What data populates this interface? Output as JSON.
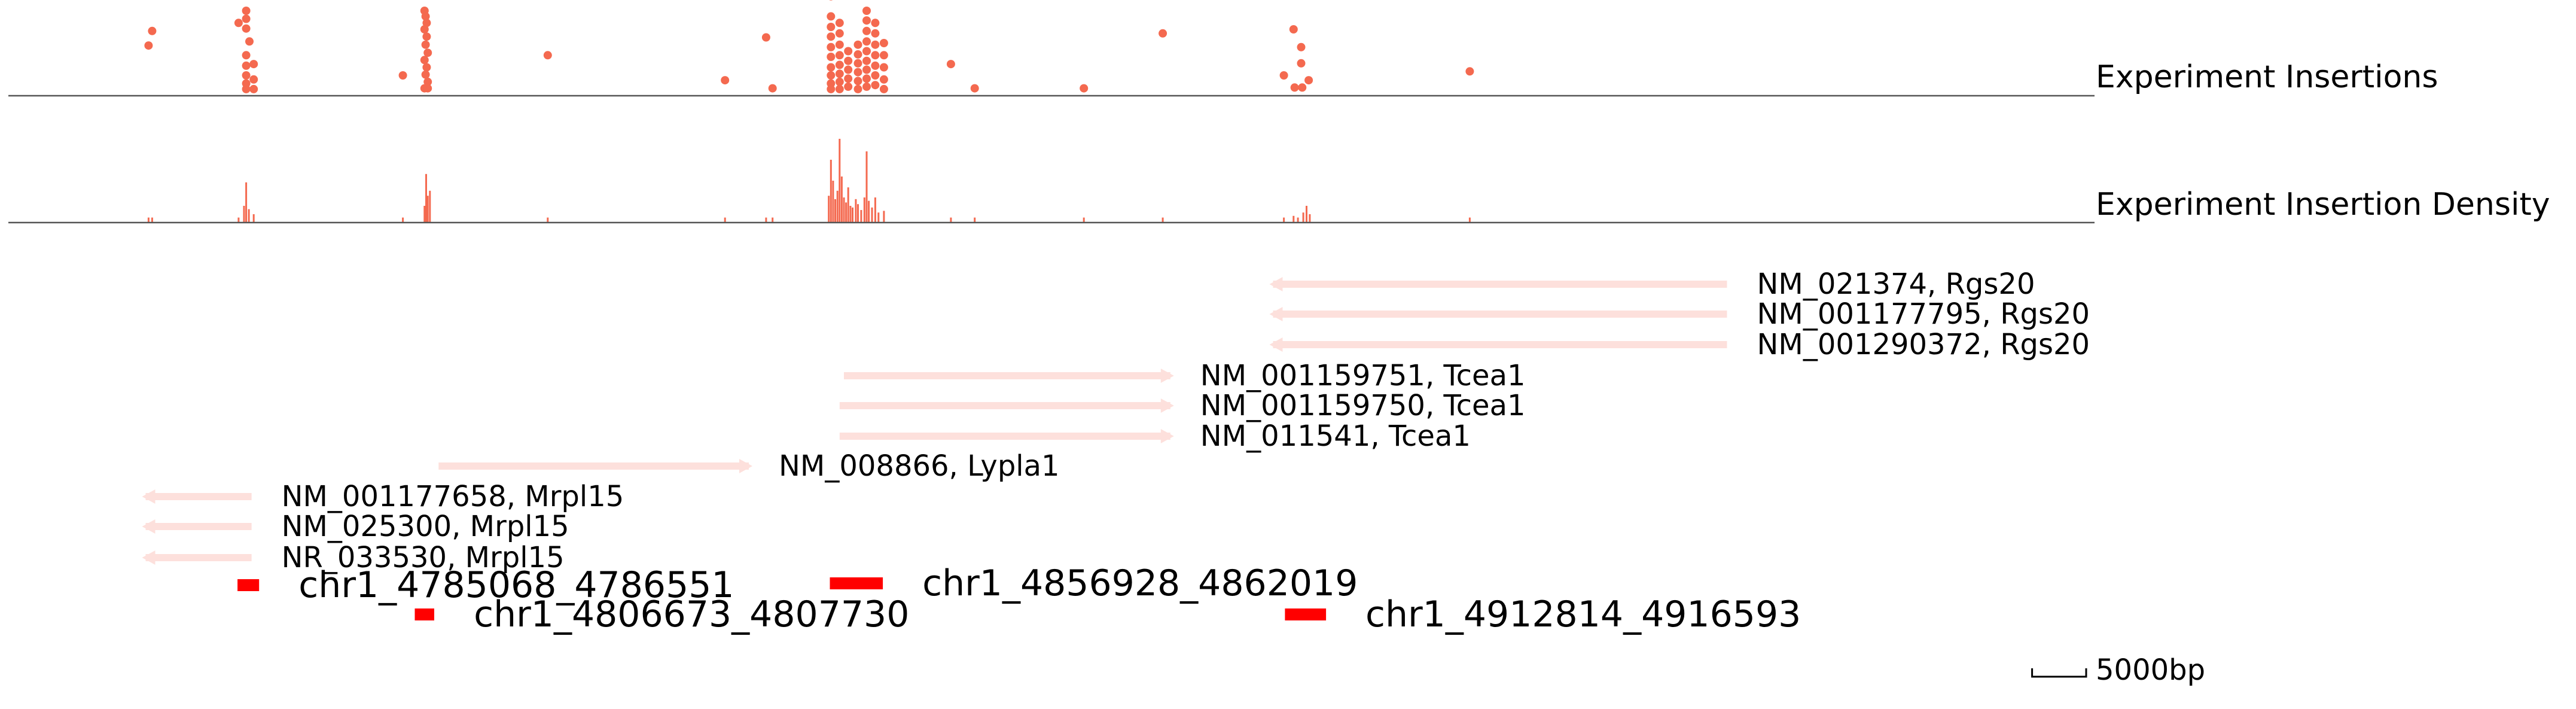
{
  "chart_data": {
    "type": "genome_browser",
    "genomic_range": [
      4752000,
      4945000
    ],
    "colors": {
      "insertion": "#f4694f",
      "density": "#f4694f",
      "gene": "#fde0dc",
      "peak": "#ff0000",
      "axis": "#555555"
    },
    "tracks": {
      "insertions_label": "Experiment Insertions",
      "density_label": "Experiment Insertion Density"
    },
    "insertions": [
      {
        "pos": 4764970,
        "level": 0.57
      },
      {
        "pos": 4765300,
        "level": 0.75
      },
      {
        "pos": 4773300,
        "level": 0.85
      },
      {
        "pos": 4774000,
        "level": 1.0
      },
      {
        "pos": 4774000,
        "level": 0.9
      },
      {
        "pos": 4774000,
        "level": 0.78
      },
      {
        "pos": 4774000,
        "level": 0.45
      },
      {
        "pos": 4774000,
        "level": 0.32
      },
      {
        "pos": 4774000,
        "level": 0.2
      },
      {
        "pos": 4774000,
        "level": 0.1
      },
      {
        "pos": 4774000,
        "level": 0.03
      },
      {
        "pos": 4774300,
        "level": 0.62
      },
      {
        "pos": 4774700,
        "level": 0.34
      },
      {
        "pos": 4774700,
        "level": 0.15
      },
      {
        "pos": 4774700,
        "level": 0.03
      },
      {
        "pos": 4788500,
        "level": 0.2
      },
      {
        "pos": 4790500,
        "level": 1.0
      },
      {
        "pos": 4790600,
        "level": 0.93
      },
      {
        "pos": 4790700,
        "level": 0.85
      },
      {
        "pos": 4790500,
        "level": 0.77
      },
      {
        "pos": 4790700,
        "level": 0.68
      },
      {
        "pos": 4790600,
        "level": 0.58
      },
      {
        "pos": 4790800,
        "level": 0.48
      },
      {
        "pos": 4790500,
        "level": 0.39
      },
      {
        "pos": 4790700,
        "level": 0.3
      },
      {
        "pos": 4790600,
        "level": 0.21
      },
      {
        "pos": 4790800,
        "level": 0.12
      },
      {
        "pos": 4790500,
        "level": 0.04
      },
      {
        "pos": 4790800,
        "level": 0.04
      },
      {
        "pos": 4801900,
        "level": 0.45
      },
      {
        "pos": 4818300,
        "level": 0.14
      },
      {
        "pos": 4822100,
        "level": 0.67
      },
      {
        "pos": 4822700,
        "level": 0.04
      },
      {
        "pos": 4828100,
        "level": 1.18
      },
      {
        "pos": 4828100,
        "level": 0.93
      },
      {
        "pos": 4828100,
        "level": 0.8
      },
      {
        "pos": 4828100,
        "level": 0.68
      },
      {
        "pos": 4828100,
        "level": 0.55
      },
      {
        "pos": 4828100,
        "level": 0.43
      },
      {
        "pos": 4828100,
        "level": 0.3
      },
      {
        "pos": 4828100,
        "level": 0.2
      },
      {
        "pos": 4828100,
        "level": 0.1
      },
      {
        "pos": 4828100,
        "level": 0.03
      },
      {
        "pos": 4828900,
        "level": 0.85
      },
      {
        "pos": 4828900,
        "level": 0.72
      },
      {
        "pos": 4828900,
        "level": 0.58
      },
      {
        "pos": 4828900,
        "level": 0.45
      },
      {
        "pos": 4828900,
        "level": 0.33
      },
      {
        "pos": 4828900,
        "level": 0.22
      },
      {
        "pos": 4828900,
        "level": 0.12
      },
      {
        "pos": 4828900,
        "level": 0.03
      },
      {
        "pos": 4829700,
        "level": 0.5
      },
      {
        "pos": 4829700,
        "level": 0.38
      },
      {
        "pos": 4829700,
        "level": 0.27
      },
      {
        "pos": 4829700,
        "level": 0.16
      },
      {
        "pos": 4829700,
        "level": 0.06
      },
      {
        "pos": 4830600,
        "level": 0.58
      },
      {
        "pos": 4830600,
        "level": 0.46
      },
      {
        "pos": 4830600,
        "level": 0.35
      },
      {
        "pos": 4830600,
        "level": 0.24
      },
      {
        "pos": 4830600,
        "level": 0.13
      },
      {
        "pos": 4830600,
        "level": 0.03
      },
      {
        "pos": 4831400,
        "level": 1.0
      },
      {
        "pos": 4831400,
        "level": 0.88
      },
      {
        "pos": 4831400,
        "level": 0.75
      },
      {
        "pos": 4831400,
        "level": 0.62
      },
      {
        "pos": 4831400,
        "level": 0.5
      },
      {
        "pos": 4831400,
        "level": 0.38
      },
      {
        "pos": 4831400,
        "level": 0.27
      },
      {
        "pos": 4831400,
        "level": 0.16
      },
      {
        "pos": 4831400,
        "level": 0.06
      },
      {
        "pos": 4832200,
        "level": 0.85
      },
      {
        "pos": 4832200,
        "level": 0.72
      },
      {
        "pos": 4832200,
        "level": 0.58
      },
      {
        "pos": 4832200,
        "level": 0.45
      },
      {
        "pos": 4832200,
        "level": 0.32
      },
      {
        "pos": 4832200,
        "level": 0.2
      },
      {
        "pos": 4832200,
        "level": 0.08
      },
      {
        "pos": 4833000,
        "level": 0.6
      },
      {
        "pos": 4833000,
        "level": 0.45
      },
      {
        "pos": 4833000,
        "level": 0.3
      },
      {
        "pos": 4833000,
        "level": 0.15
      },
      {
        "pos": 4833000,
        "level": 0.03
      },
      {
        "pos": 4839200,
        "level": 0.34
      },
      {
        "pos": 4841400,
        "level": 0.04
      },
      {
        "pos": 4851500,
        "level": 0.04
      },
      {
        "pos": 4858800,
        "level": 0.72
      },
      {
        "pos": 4870000,
        "level": 0.2
      },
      {
        "pos": 4870900,
        "level": 0.77
      },
      {
        "pos": 4871600,
        "level": 0.55
      },
      {
        "pos": 4871600,
        "level": 0.35
      },
      {
        "pos": 4871000,
        "level": 0.05
      },
      {
        "pos": 4871700,
        "level": 0.05
      },
      {
        "pos": 4872300,
        "level": 0.14
      },
      {
        "pos": 4887200,
        "level": 0.25
      }
    ],
    "density": [
      {
        "pos": 4764970,
        "value": 0.06
      },
      {
        "pos": 4765300,
        "value": 0.06
      },
      {
        "pos": 4773300,
        "value": 0.06
      },
      {
        "pos": 4773800,
        "value": 0.2
      },
      {
        "pos": 4774000,
        "value": 0.48
      },
      {
        "pos": 4774250,
        "value": 0.16
      },
      {
        "pos": 4774700,
        "value": 0.1
      },
      {
        "pos": 4788500,
        "value": 0.06
      },
      {
        "pos": 4790500,
        "value": 0.2
      },
      {
        "pos": 4790650,
        "value": 0.58
      },
      {
        "pos": 4790800,
        "value": 0.32
      },
      {
        "pos": 4791000,
        "value": 0.38
      },
      {
        "pos": 4801900,
        "value": 0.06
      },
      {
        "pos": 4818300,
        "value": 0.06
      },
      {
        "pos": 4822100,
        "value": 0.06
      },
      {
        "pos": 4822700,
        "value": 0.06
      },
      {
        "pos": 4827900,
        "value": 0.32
      },
      {
        "pos": 4828100,
        "value": 0.75
      },
      {
        "pos": 4828300,
        "value": 0.5
      },
      {
        "pos": 4828500,
        "value": 0.28
      },
      {
        "pos": 4828700,
        "value": 0.38
      },
      {
        "pos": 4828900,
        "value": 1.0
      },
      {
        "pos": 4829100,
        "value": 0.55
      },
      {
        "pos": 4829300,
        "value": 0.3
      },
      {
        "pos": 4829500,
        "value": 0.24
      },
      {
        "pos": 4829700,
        "value": 0.42
      },
      {
        "pos": 4829900,
        "value": 0.2
      },
      {
        "pos": 4830100,
        "value": 0.18
      },
      {
        "pos": 4830400,
        "value": 0.28
      },
      {
        "pos": 4830600,
        "value": 0.22
      },
      {
        "pos": 4830900,
        "value": 0.15
      },
      {
        "pos": 4831200,
        "value": 0.3
      },
      {
        "pos": 4831400,
        "value": 0.85
      },
      {
        "pos": 4831600,
        "value": 0.26
      },
      {
        "pos": 4831900,
        "value": 0.18
      },
      {
        "pos": 4832200,
        "value": 0.3
      },
      {
        "pos": 4832500,
        "value": 0.12
      },
      {
        "pos": 4833000,
        "value": 0.14
      },
      {
        "pos": 4839200,
        "value": 0.06
      },
      {
        "pos": 4841400,
        "value": 0.06
      },
      {
        "pos": 4851500,
        "value": 0.06
      },
      {
        "pos": 4858800,
        "value": 0.06
      },
      {
        "pos": 4870000,
        "value": 0.06
      },
      {
        "pos": 4870900,
        "value": 0.08
      },
      {
        "pos": 4871300,
        "value": 0.06
      },
      {
        "pos": 4871800,
        "value": 0.12
      },
      {
        "pos": 4872100,
        "value": 0.2
      },
      {
        "pos": 4872400,
        "value": 0.1
      },
      {
        "pos": 4887200,
        "value": 0.06
      }
    ],
    "genes": [
      {
        "label": "NM_021374, Rgs20",
        "start": 4869000,
        "end": 4911000,
        "strand": "-"
      },
      {
        "label": "NM_001177795, Rgs20",
        "start": 4869000,
        "end": 4911000,
        "strand": "-"
      },
      {
        "label": "NM_001290372, Rgs20",
        "start": 4869000,
        "end": 4911000,
        "strand": "-"
      },
      {
        "label": "NM_001159751, Tcea1",
        "start": 4829300,
        "end": 4859500,
        "strand": "+"
      },
      {
        "label": "NM_001159750, Tcea1",
        "start": 4828900,
        "end": 4859500,
        "strand": "+"
      },
      {
        "label": "NM_011541, Tcea1",
        "start": 4828900,
        "end": 4859500,
        "strand": "+"
      },
      {
        "label": "NM_008866, Lypla1",
        "start": 4791800,
        "end": 4820500,
        "strand": "+"
      },
      {
        "label": "NM_001177658, Mrpl15",
        "start": 4764700,
        "end": 4774500,
        "strand": "-"
      },
      {
        "label": "NM_025300, Mrpl15",
        "start": 4764700,
        "end": 4774500,
        "strand": "-"
      },
      {
        "label": "NR_033530, Mrpl15",
        "start": 4764700,
        "end": 4774500,
        "strand": "-"
      }
    ],
    "peaks": [
      {
        "label": "chr1_4785068_4786551",
        "start": 4773200,
        "end": 4775200
      },
      {
        "label": "chr1_4806673_4807730",
        "start": 4789600,
        "end": 4791400
      },
      {
        "label": "chr1_4856928_4862019",
        "start": 4828000,
        "end": 4832900
      },
      {
        "label": "chr1_4912814_4916593",
        "start": 4870100,
        "end": 4873900
      }
    ],
    "scale_bar": {
      "length_bp": 5000,
      "label": "5000bp"
    }
  }
}
